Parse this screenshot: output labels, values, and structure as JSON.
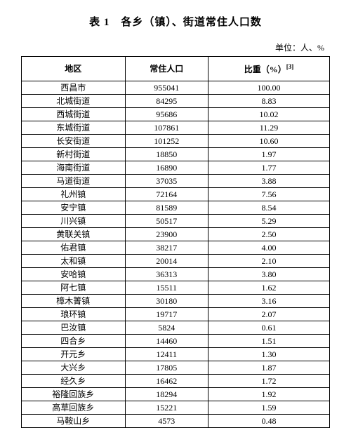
{
  "title": "表 1　各乡（镇）、街道常住人口数",
  "unit_label": "单位：人、%",
  "columns": [
    "地区",
    "常住人口",
    "比重（%）"
  ],
  "footnote_mark": "[3]",
  "rows": [
    {
      "region": "西昌市",
      "pop": "955041",
      "pct": "100.00"
    },
    {
      "region": "北城街道",
      "pop": "84295",
      "pct": "8.83"
    },
    {
      "region": "西城街道",
      "pop": "95686",
      "pct": "10.02"
    },
    {
      "region": "东城街道",
      "pop": "107861",
      "pct": "11.29"
    },
    {
      "region": "长安街道",
      "pop": "101252",
      "pct": "10.60"
    },
    {
      "region": "新村街道",
      "pop": "18850",
      "pct": "1.97"
    },
    {
      "region": "海南街道",
      "pop": "16890",
      "pct": "1.77"
    },
    {
      "region": "马道街道",
      "pop": "37035",
      "pct": "3.88"
    },
    {
      "region": "礼州镇",
      "pop": "72164",
      "pct": "7.56"
    },
    {
      "region": "安宁镇",
      "pop": "81589",
      "pct": "8.54"
    },
    {
      "region": "川兴镇",
      "pop": "50517",
      "pct": "5.29"
    },
    {
      "region": "黄联关镇",
      "pop": "23900",
      "pct": "2.50"
    },
    {
      "region": "佑君镇",
      "pop": "38217",
      "pct": "4.00"
    },
    {
      "region": "太和镇",
      "pop": "20014",
      "pct": "2.10"
    },
    {
      "region": "安哈镇",
      "pop": "36313",
      "pct": "3.80"
    },
    {
      "region": "阿七镇",
      "pop": "15511",
      "pct": "1.62"
    },
    {
      "region": "樟木箐镇",
      "pop": "30180",
      "pct": "3.16"
    },
    {
      "region": "琅环镇",
      "pop": "19717",
      "pct": "2.07"
    },
    {
      "region": "巴汝镇",
      "pop": "5824",
      "pct": "0.61"
    },
    {
      "region": "四合乡",
      "pop": "14460",
      "pct": "1.51"
    },
    {
      "region": "开元乡",
      "pop": "12411",
      "pct": "1.30"
    },
    {
      "region": "大兴乡",
      "pop": "17805",
      "pct": "1.87"
    },
    {
      "region": "经久乡",
      "pop": "16462",
      "pct": "1.72"
    },
    {
      "region": "裕隆回族乡",
      "pop": "18294",
      "pct": "1.92"
    },
    {
      "region": "高草回族乡",
      "pop": "15221",
      "pct": "1.59"
    },
    {
      "region": "马鞍山乡",
      "pop": "4573",
      "pct": "0.48"
    }
  ]
}
